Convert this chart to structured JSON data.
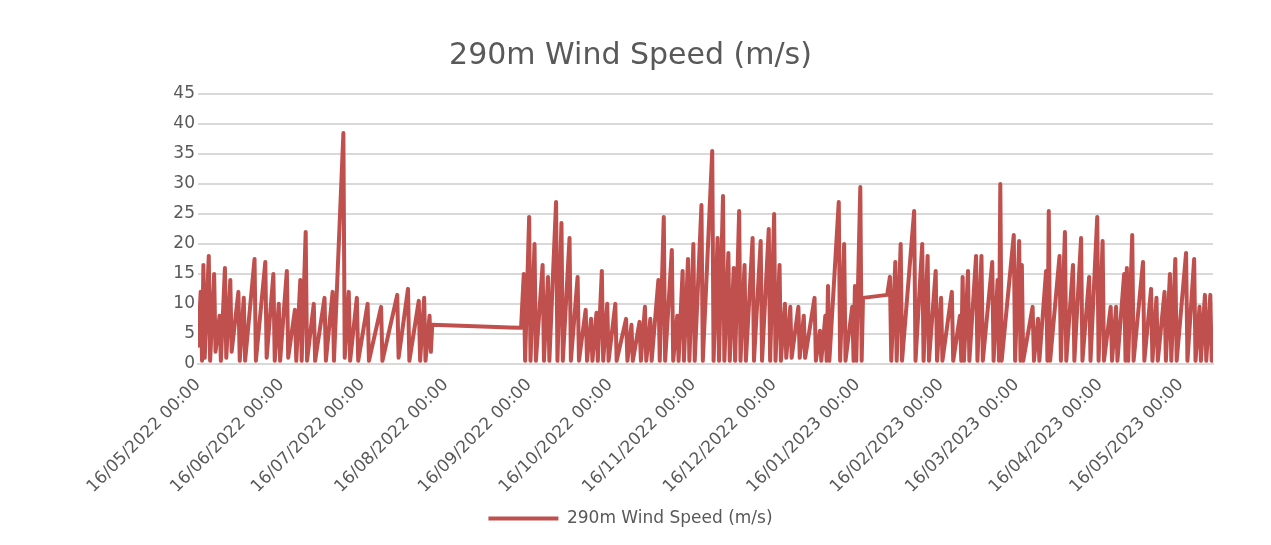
{
  "chart_data": {
    "type": "line",
    "title": "290m Wind Speed (m/s)",
    "legend": "bottom",
    "grid": "y",
    "marker": "none",
    "line_style": "solid",
    "xlim": [
      "2022-05-16",
      "2023-05-28"
    ],
    "xticks": [
      {
        "value": "2022-05-16",
        "label": "16/05/2022 00:00"
      },
      {
        "value": "2022-06-16",
        "label": "16/06/2022 00:00"
      },
      {
        "value": "2022-07-16",
        "label": "16/07/2022 00:00"
      },
      {
        "value": "2022-08-16",
        "label": "16/08/2022 00:00"
      },
      {
        "value": "2022-09-16",
        "label": "16/09/2022 00:00"
      },
      {
        "value": "2022-10-16",
        "label": "16/10/2022 00:00"
      },
      {
        "value": "2022-11-16",
        "label": "16/11/2022 00:00"
      },
      {
        "value": "2022-12-16",
        "label": "16/12/2022 00:00"
      },
      {
        "value": "2023-01-16",
        "label": "16/01/2023 00:00"
      },
      {
        "value": "2023-02-16",
        "label": "16/02/2023 00:00"
      },
      {
        "value": "2023-03-16",
        "label": "16/03/2023 00:00"
      },
      {
        "value": "2023-04-16",
        "label": "16/04/2023 00:00"
      },
      {
        "value": "2023-05-16",
        "label": "16/05/2023 00:00"
      }
    ],
    "ylim": [
      0,
      45
    ],
    "yticks": [
      0,
      5,
      10,
      15,
      20,
      25,
      30,
      35,
      40,
      45
    ],
    "series": [
      {
        "name": "290m Wind Speed (m/s)",
        "color": "#c0504d",
        "x": [
          "2022-05-16",
          "2022-05-17",
          "2022-05-17T12:00",
          "2022-05-18",
          "2022-05-18T12:00",
          "2022-05-20",
          "2022-05-20T12:00",
          "2022-05-22",
          "2022-05-22T12:00",
          "2022-05-24",
          "2022-05-24T12:00",
          "2022-05-26",
          "2022-05-26T12:00",
          "2022-05-28",
          "2022-05-28T12:00",
          "2022-05-31",
          "2022-05-31T12:00",
          "2022-06-02",
          "2022-06-02T12:00",
          "2022-06-06",
          "2022-06-06T12:00",
          "2022-06-10",
          "2022-06-10T12:00",
          "2022-06-13",
          "2022-06-13T12:00",
          "2022-06-15",
          "2022-06-15T12:00",
          "2022-06-18",
          "2022-06-18T12:00",
          "2022-06-21",
          "2022-06-21T12:00",
          "2022-06-23",
          "2022-06-23T12:00",
          "2022-06-25",
          "2022-06-25T12:00",
          "2022-06-28",
          "2022-06-28T12:00",
          "2022-07-02",
          "2022-07-02T12:00",
          "2022-07-05",
          "2022-07-05T12:00",
          "2022-07-09",
          "2022-07-09T12:00",
          "2022-07-11",
          "2022-07-11T12:00",
          "2022-07-14",
          "2022-07-14T12:00",
          "2022-07-18",
          "2022-07-18T12:00",
          "2022-07-23",
          "2022-07-23T12:00",
          "2022-07-29",
          "2022-07-29T12:00",
          "2022-08-02",
          "2022-08-02T12:00",
          "2022-08-06",
          "2022-08-06T12:00",
          "2022-08-08",
          "2022-08-08T12:00",
          "2022-08-10",
          "2022-08-10T12:00",
          "2022-08-11",
          "2022-09-13",
          "2022-09-14",
          "2022-09-14T12:00",
          "2022-09-16",
          "2022-09-16T12:00",
          "2022-09-18",
          "2022-09-18T12:00",
          "2022-09-21",
          "2022-09-21T12:00",
          "2022-09-23",
          "2022-09-23T12:00",
          "2022-09-26",
          "2022-09-26T12:00",
          "2022-09-28",
          "2022-09-28T12:00",
          "2022-10-01",
          "2022-10-01T12:00",
          "2022-10-04",
          "2022-10-04T12:00",
          "2022-10-07",
          "2022-10-07T12:00",
          "2022-10-09",
          "2022-10-09T12:00",
          "2022-10-11",
          "2022-10-11T12:00",
          "2022-10-13",
          "2022-10-13T12:00",
          "2022-10-15",
          "2022-10-15T12:00",
          "2022-10-18",
          "2022-10-18T12:00",
          "2022-10-22",
          "2022-10-22T12:00",
          "2022-10-24",
          "2022-10-24T12:00",
          "2022-10-27",
          "2022-10-27T12:00",
          "2022-10-29",
          "2022-10-29T12:00",
          "2022-10-31",
          "2022-10-31T12:00",
          "2022-11-03",
          "2022-11-03T12:00",
          "2022-11-05",
          "2022-11-05T12:00",
          "2022-11-08",
          "2022-11-08T12:00",
          "2022-11-10",
          "2022-11-10T12:00",
          "2022-11-12",
          "2022-11-12T12:00",
          "2022-11-14",
          "2022-11-14T12:00",
          "2022-11-16",
          "2022-11-16T12:00",
          "2022-11-19",
          "2022-11-19T12:00",
          "2022-11-23",
          "2022-11-23T12:00",
          "2022-11-25",
          "2022-11-25T12:00",
          "2022-11-27",
          "2022-11-27T12:00",
          "2022-11-29",
          "2022-11-29T12:00",
          "2022-12-01",
          "2022-12-01T12:00",
          "2022-12-03",
          "2022-12-03T12:00",
          "2022-12-05",
          "2022-12-05T12:00",
          "2022-12-08",
          "2022-12-08T12:00",
          "2022-12-11",
          "2022-12-11T12:00",
          "2022-12-14",
          "2022-12-14T12:00",
          "2022-12-16",
          "2022-12-16T12:00",
          "2022-12-18",
          "2022-12-18T12:00",
          "2022-12-20",
          "2022-12-20T12:00",
          "2022-12-22",
          "2022-12-22T12:00",
          "2022-12-25",
          "2022-12-25T12:00",
          "2022-12-27",
          "2022-12-27T12:00",
          "2022-12-31",
          "2022-12-31T12:00",
          "2023-01-02",
          "2023-01-02T12:00",
          "2023-01-04",
          "2023-01-04T12:00",
          "2023-01-05",
          "2023-01-05T12:00",
          "2023-01-09",
          "2023-01-09T12:00",
          "2023-01-11",
          "2023-01-11T12:00",
          "2023-01-14",
          "2023-01-14T12:00",
          "2023-01-15",
          "2023-01-15T12:00",
          "2023-01-17",
          "2023-01-17T12:00",
          "2023-01-18",
          "2023-01-27",
          "2023-01-28",
          "2023-01-28T12:00",
          "2023-01-30",
          "2023-01-30T12:00",
          "2023-02-01",
          "2023-02-01T12:00",
          "2023-02-06",
          "2023-02-06T12:00",
          "2023-02-09",
          "2023-02-09T12:00",
          "2023-02-11",
          "2023-02-11T12:00",
          "2023-02-14",
          "2023-02-14T12:00",
          "2023-02-16",
          "2023-02-16T12:00",
          "2023-02-20",
          "2023-02-20T12:00",
          "2023-02-23",
          "2023-02-23T12:00",
          "2023-02-24",
          "2023-02-24T12:00",
          "2023-02-26",
          "2023-02-26T12:00",
          "2023-03-01",
          "2023-03-01T12:00",
          "2023-03-03",
          "2023-03-03T12:00",
          "2023-03-07",
          "2023-03-07T12:00",
          "2023-03-09",
          "2023-03-09T12:00",
          "2023-03-10",
          "2023-03-10T12:00",
          "2023-03-15",
          "2023-03-15T12:00",
          "2023-03-17",
          "2023-03-17T12:00",
          "2023-03-18",
          "2023-03-18T12:00",
          "2023-03-22",
          "2023-03-22T12:00",
          "2023-03-24",
          "2023-03-24T12:00",
          "2023-03-27",
          "2023-03-27T12:00",
          "2023-03-28",
          "2023-03-28T12:00",
          "2023-04-01",
          "2023-04-01T12:00",
          "2023-04-03",
          "2023-04-03T12:00",
          "2023-04-06",
          "2023-04-06T12:00",
          "2023-04-09",
          "2023-04-09T12:00",
          "2023-04-12",
          "2023-04-12T12:00",
          "2023-04-15",
          "2023-04-15T12:00",
          "2023-04-17",
          "2023-04-17T12:00",
          "2023-04-20",
          "2023-04-20T12:00",
          "2023-04-22",
          "2023-04-22T12:00",
          "2023-04-25",
          "2023-04-25T12:00",
          "2023-04-26",
          "2023-04-26T12:00",
          "2023-04-28",
          "2023-04-28T12:00",
          "2023-05-02",
          "2023-05-02T12:00",
          "2023-05-05",
          "2023-05-05T12:00",
          "2023-05-07",
          "2023-05-07T12:00",
          "2023-05-10",
          "2023-05-10T12:00",
          "2023-05-12",
          "2023-05-12T12:00",
          "2023-05-14",
          "2023-05-14T12:00",
          "2023-05-18",
          "2023-05-18T12:00",
          "2023-05-21",
          "2023-05-21T12:00",
          "2023-05-23",
          "2023-05-23T12:00",
          "2023-05-25",
          "2023-05-25T12:00",
          "2023-05-27",
          "2023-05-27T12:00"
        ],
        "values": [
          3,
          12,
          0.5,
          16.5,
          1,
          18,
          0.5,
          15,
          2,
          8,
          0.5,
          16,
          1,
          14,
          2,
          12,
          0.5,
          11,
          0.5,
          17.5,
          0.5,
          17,
          1,
          15,
          0.5,
          10,
          0.5,
          15.5,
          1,
          9,
          0.5,
          14,
          0.5,
          22,
          0.5,
          10,
          0.5,
          11,
          0.5,
          12,
          0.5,
          38.5,
          1,
          12,
          0.5,
          11,
          0.5,
          10,
          0.5,
          9.5,
          0.5,
          11.5,
          1,
          12.5,
          0.5,
          10.5,
          0.5,
          11,
          0.5,
          8,
          2,
          6.5,
          6,
          15,
          0.5,
          24.5,
          0.5,
          20,
          0.5,
          16.5,
          0.5,
          14.5,
          0.5,
          27,
          0.5,
          23.5,
          0.5,
          21,
          0.5,
          14.5,
          0.5,
          9,
          0.5,
          7.5,
          0.5,
          8.5,
          0.5,
          15.5,
          0.5,
          10,
          0.5,
          10,
          0.5,
          7.5,
          0.5,
          6.5,
          0.5,
          7,
          0.5,
          9.5,
          0.5,
          7.5,
          0.5,
          14,
          0.5,
          24.5,
          0.5,
          19,
          0.5,
          8,
          0.5,
          15.5,
          0.5,
          17.5,
          0.5,
          20,
          0.5,
          26.5,
          0.5,
          35.5,
          0.5,
          21,
          0.5,
          28,
          0.5,
          18.5,
          0.5,
          16,
          0.5,
          25.5,
          0.5,
          16.5,
          0.5,
          21,
          0.5,
          20.5,
          0.5,
          22.5,
          0.5,
          25,
          0.5,
          16.5,
          0.5,
          10,
          1,
          9.5,
          1,
          9.5,
          1,
          8,
          1,
          11,
          0.5,
          5.5,
          0.5,
          8,
          0.5,
          13,
          0.5,
          27,
          0.5,
          20,
          0.5,
          9.5,
          0.5,
          13,
          0.5,
          29.5,
          0.5,
          11,
          11.5,
          14.5,
          0.5,
          17,
          0.5,
          20,
          0.5,
          25.5,
          0.5,
          20,
          0.5,
          18,
          0.5,
          15.5,
          0.5,
          11,
          0.5,
          12,
          0.5,
          8,
          0.5,
          14.5,
          0.5,
          15.5,
          0.5,
          18,
          0.5,
          18,
          0.5,
          17,
          0.5,
          14,
          0.5,
          30,
          0.5,
          21.5,
          0.5,
          20.5,
          0.5,
          16.5,
          0.5,
          9.5,
          0.5,
          7.5,
          0.5,
          15.5,
          0.5,
          25.5,
          0.5,
          18,
          0.5,
          22,
          0.5,
          16.5,
          0.5,
          21,
          0.5,
          14.5,
          0.5,
          24.5,
          0.5,
          20.5,
          0.5,
          9.5,
          0.5,
          9.5,
          0.5,
          15,
          0.5,
          16,
          0.5,
          21.5,
          0.5,
          17,
          0.5,
          12.5,
          0.5,
          11,
          0.5,
          12,
          0.5,
          15,
          0.5,
          17.5,
          0.5,
          18.5,
          0.5,
          17.5,
          0.5,
          9.5,
          0.5,
          11.5,
          0.5,
          11.5,
          0.5
        ]
      }
    ]
  }
}
